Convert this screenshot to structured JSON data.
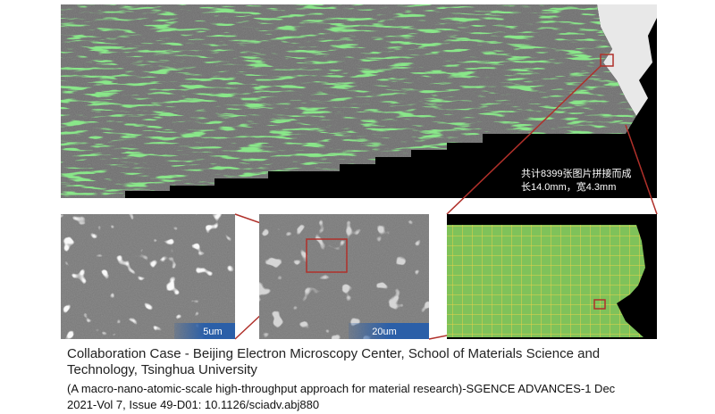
{
  "annotation": {
    "lines": [
      "共计8399张图片拼接而成",
      "长14.0mm，宽4.3mm"
    ]
  },
  "scale_bars": [
    "5um",
    "20um"
  ],
  "caption": {
    "lines": [
      "Collaboration Case - Beijing Electron Microscopy Center, School of Materials Science and",
      "Technology, Tsinghua University",
      "(A macro-nano-atomic-scale high-throughput approach for material research)-SGENCE ADVANCES-1 Dec",
      "2021-Vol 7, Issue 49-D01: 10.1126/sciadv.abj880"
    ]
  }
}
